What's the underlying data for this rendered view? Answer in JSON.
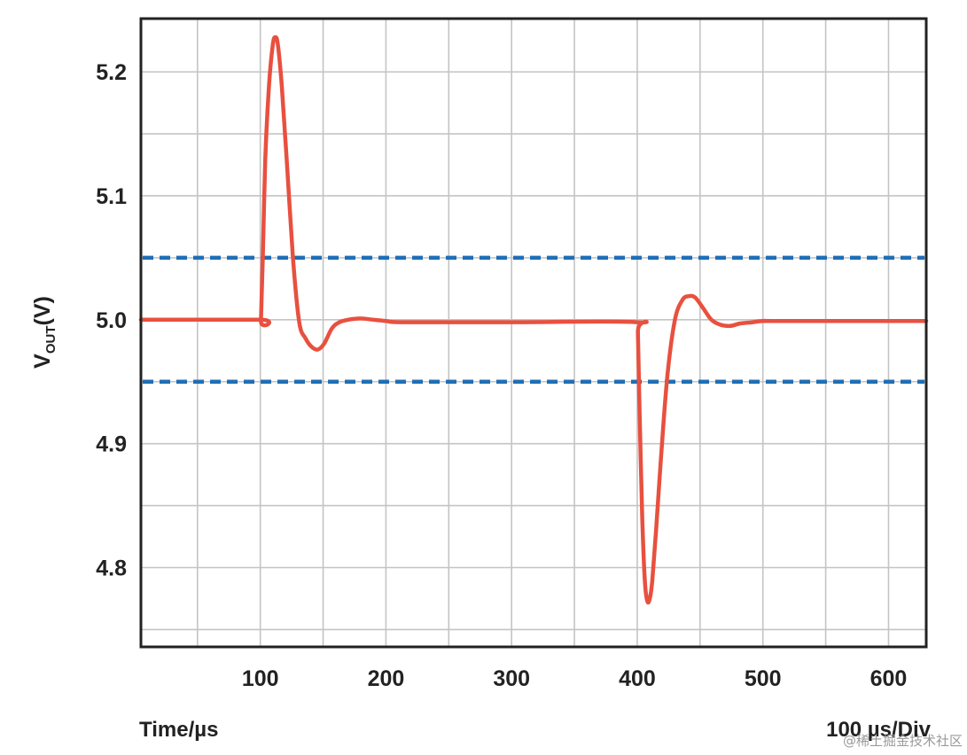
{
  "chart_data": {
    "type": "line",
    "xlabel": "Time/µs",
    "timebase_label": "100 µs/Div",
    "ylabel": {
      "main": "V",
      "sub": "OUT",
      "unit": "(V)"
    },
    "xlim": [
      5,
      630
    ],
    "ylim": [
      4.736,
      5.243
    ],
    "x_ticks": [
      100,
      200,
      300,
      400,
      500,
      600
    ],
    "y_ticks": [
      {
        "value": 5.2,
        "label": "5.2"
      },
      {
        "value": 5.1,
        "label": "5.1"
      },
      {
        "value": 5.0,
        "label": "5.0"
      },
      {
        "value": 4.9,
        "label": "4.9"
      },
      {
        "value": 4.8,
        "label": "4.8"
      }
    ],
    "grid": true,
    "x_grid": [
      50,
      100,
      150,
      200,
      250,
      300,
      350,
      400,
      450,
      500,
      550,
      600
    ],
    "y_grid": [
      5.2,
      5.15,
      5.1,
      5.05,
      5.0,
      4.95,
      4.9,
      4.85,
      4.8,
      4.75
    ],
    "limit_lines": [
      {
        "value": 5.05,
        "color": "#1f6fb5",
        "style": "dashed"
      },
      {
        "value": 4.95,
        "color": "#1f6fb5",
        "style": "dashed"
      }
    ],
    "series": [
      {
        "color": "#e8503f",
        "points": [
          [
            5,
            5.0
          ],
          [
            100,
            5.0
          ],
          [
            100.5,
            4.999
          ],
          [
            102,
            5.05
          ],
          [
            104,
            5.13
          ],
          [
            107,
            5.19
          ],
          [
            110,
            5.222
          ],
          [
            112,
            5.228
          ],
          [
            114,
            5.222
          ],
          [
            117,
            5.19
          ],
          [
            121,
            5.13
          ],
          [
            126,
            5.05
          ],
          [
            131,
            4.998
          ],
          [
            136,
            4.985
          ],
          [
            141,
            4.978
          ],
          [
            146,
            4.976
          ],
          [
            151,
            4.981
          ],
          [
            157,
            4.993
          ],
          [
            163,
            4.998
          ],
          [
            170,
            5.0
          ],
          [
            180,
            5.001
          ],
          [
            190,
            5.0
          ],
          [
            200,
            4.999
          ],
          [
            215,
            4.998
          ],
          [
            300,
            4.998
          ],
          [
            400,
            4.998
          ],
          [
            400.5,
            4.99
          ],
          [
            402,
            4.92
          ],
          [
            404,
            4.84
          ],
          [
            406,
            4.79
          ],
          [
            408,
            4.773
          ],
          [
            410,
            4.775
          ],
          [
            412,
            4.79
          ],
          [
            415,
            4.83
          ],
          [
            419,
            4.89
          ],
          [
            424,
            4.955
          ],
          [
            430,
            5.0
          ],
          [
            436,
            5.016
          ],
          [
            441,
            5.019
          ],
          [
            446,
            5.018
          ],
          [
            452,
            5.01
          ],
          [
            459,
            5.0
          ],
          [
            466,
            4.996
          ],
          [
            474,
            4.995
          ],
          [
            482,
            4.997
          ],
          [
            492,
            4.998
          ],
          [
            500,
            4.999
          ],
          [
            515,
            4.999
          ],
          [
            630,
            4.999
          ]
        ]
      }
    ]
  },
  "watermark": "@稀土掘金技术社区"
}
